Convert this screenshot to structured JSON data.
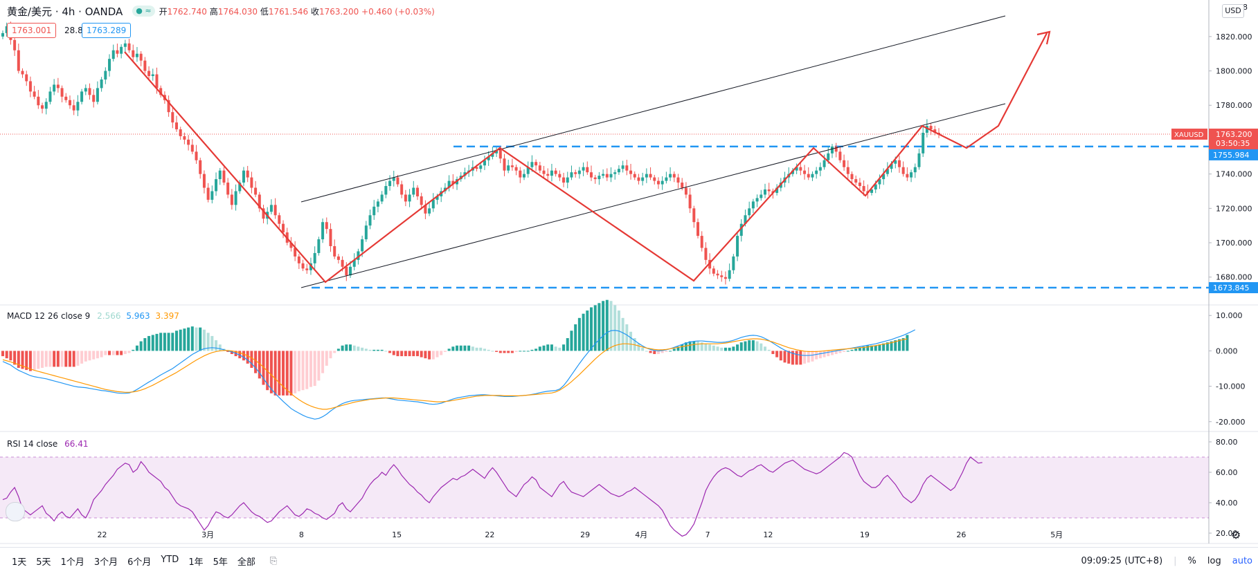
{
  "header": {
    "symbol": "黄金/美元 · 4h · OANDA",
    "status_badge": "● ≈",
    "open_label": "开",
    "open": "1762.740",
    "high_label": "高",
    "high": "1764.030",
    "low_label": "低",
    "low": "1761.546",
    "close_label": "收",
    "close": "1763.200",
    "change": "+0.460 (+0.03%)",
    "bid": "1763.001",
    "spread": "28.8",
    "ask": "1763.289",
    "currency": "USD"
  },
  "price_axis": {
    "ticks": [
      "1820.000",
      "1800.000",
      "1780.000",
      "1760.000",
      "1740.000",
      "1720.000",
      "1700.000",
      "1680.000"
    ],
    "top_partial": "18",
    "symbol_tag": "XAUUSD",
    "last_price": "1763.200",
    "countdown": "03:50:35",
    "level_upper": "1755.984",
    "level_lower": "1673.845"
  },
  "time_axis": {
    "labels": [
      "22",
      "3月",
      "8",
      "15",
      "22",
      "29",
      "4月",
      "7",
      "12",
      "19",
      "26",
      "5月"
    ]
  },
  "macd": {
    "label": "MACD 12 26 close 9",
    "histogram": "2.566",
    "macd": "5.963",
    "signal": "3.397",
    "ticks": [
      "10.000",
      "0.000",
      "-10.000",
      "-20.000"
    ]
  },
  "rsi": {
    "label": "RSI 14 close",
    "value": "66.41",
    "ticks": [
      "80.00",
      "60.00",
      "40.00",
      "20.00"
    ]
  },
  "bottom_bar": {
    "ranges": [
      "1天",
      "5天",
      "1个月",
      "3个月",
      "6个月",
      "YTD",
      "1年",
      "5年",
      "全部"
    ],
    "clock": "09:09:25 (UTC+8)",
    "percent": "%",
    "log": "log",
    "auto": "auto"
  },
  "colors": {
    "up": "#26a69a",
    "down": "#ef5350",
    "drawing": "#e53935",
    "level": "#2196f3",
    "macd_line": "#2196f3",
    "signal_line": "#ff9800",
    "rsi": "#9c27b0"
  },
  "chart_data": [
    {
      "type": "candlestick",
      "timeframe": "4h",
      "ylim": [
        1665,
        1830
      ],
      "closes": [
        1822,
        1826,
        1818,
        1812,
        1800,
        1798,
        1794,
        1788,
        1785,
        1780,
        1778,
        1782,
        1788,
        1792,
        1790,
        1785,
        1783,
        1780,
        1777,
        1782,
        1788,
        1790,
        1786,
        1782,
        1790,
        1795,
        1800,
        1807,
        1812,
        1810,
        1814,
        1816,
        1812,
        1808,
        1810,
        1806,
        1800,
        1797,
        1798,
        1790,
        1786,
        1783,
        1776,
        1770,
        1766,
        1762,
        1760,
        1757,
        1753,
        1748,
        1740,
        1732,
        1725,
        1730,
        1737,
        1742,
        1735,
        1728,
        1722,
        1730,
        1735,
        1742,
        1738,
        1732,
        1728,
        1720,
        1714,
        1718,
        1722,
        1716,
        1711,
        1706,
        1700,
        1697,
        1692,
        1688,
        1685,
        1684,
        1688,
        1694,
        1702,
        1712,
        1708,
        1698,
        1692,
        1690,
        1686,
        1681,
        1686,
        1690,
        1695,
        1702,
        1710,
        1716,
        1721,
        1724,
        1728,
        1733,
        1736,
        1738,
        1734,
        1728,
        1724,
        1728,
        1732,
        1727,
        1722,
        1717,
        1720,
        1725,
        1727,
        1730,
        1732,
        1736,
        1734,
        1737,
        1739,
        1741,
        1742,
        1744,
        1743,
        1745,
        1748,
        1750,
        1752,
        1754,
        1749,
        1742,
        1745,
        1744,
        1742,
        1738,
        1740,
        1744,
        1747,
        1745,
        1742,
        1740,
        1739,
        1742,
        1740,
        1738,
        1735,
        1738,
        1741,
        1740,
        1742,
        1744,
        1741,
        1738,
        1737,
        1739,
        1740,
        1738,
        1740,
        1741,
        1743,
        1745,
        1742,
        1740,
        1738,
        1736,
        1738,
        1740,
        1738,
        1736,
        1734,
        1736,
        1738,
        1740,
        1738,
        1735,
        1732,
        1728,
        1720,
        1712,
        1704,
        1697,
        1690,
        1685,
        1682,
        1681,
        1680,
        1679,
        1684,
        1692,
        1704,
        1711,
        1716,
        1720,
        1724,
        1726,
        1728,
        1731,
        1730,
        1729,
        1732,
        1735,
        1738,
        1740,
        1742,
        1744,
        1742,
        1740,
        1738,
        1740,
        1742,
        1744,
        1748,
        1752,
        1756,
        1753,
        1748,
        1744,
        1740,
        1737,
        1735,
        1733,
        1730,
        1729,
        1731,
        1734,
        1737,
        1740,
        1743,
        1746,
        1748,
        1744,
        1740,
        1738,
        1741,
        1744,
        1752,
        1764,
        1768,
        1766,
        1764,
        1763
      ]
    },
    {
      "type": "line",
      "name": "MACD 12 26 close 9",
      "ylim": [
        -22,
        12
      ],
      "macd_line": [
        -3,
        -3.5,
        -4,
        -4.8,
        -5.5,
        -6,
        -6.5,
        -7,
        -7.3,
        -7.5,
        -7.7,
        -7.9,
        -8.2,
        -8.5,
        -8.8,
        -9.1,
        -9.4,
        -9.7,
        -10,
        -10.2,
        -10.3,
        -10.4,
        -10.6,
        -10.8,
        -11,
        -11.2,
        -11.3,
        -11.5,
        -11.7,
        -11.9,
        -12,
        -12,
        -11.9,
        -11.5,
        -10.9,
        -10.2,
        -9.5,
        -8.8,
        -8.2,
        -7.5,
        -6.8,
        -6.2,
        -5.6,
        -5,
        -4.2,
        -3.4,
        -2.6,
        -1.8,
        -1,
        -0.4,
        0.2,
        0.6,
        0.8,
        0.9,
        0.8,
        0.6,
        0.3,
        0,
        -0.3,
        -0.7,
        -1.2,
        -1.8,
        -2.6,
        -3.6,
        -4.8,
        -6.2,
        -7.8,
        -9.4,
        -10.8,
        -12.1,
        -13.2,
        -14.3,
        -15.3,
        -16.3,
        -17,
        -17.6,
        -18.2,
        -18.7,
        -19,
        -19.3,
        -19.1,
        -18.6,
        -17.9,
        -17,
        -16.2,
        -15.5,
        -14.9,
        -14.5,
        -14.2,
        -14,
        -13.9,
        -13.8,
        -13.7,
        -13.6,
        -13.5,
        -13.4,
        -13.3,
        -13.3,
        -13.5,
        -13.7,
        -13.9,
        -14,
        -14.1,
        -14.2,
        -14.3,
        -14.4,
        -14.6,
        -14.8,
        -15,
        -15.1,
        -15,
        -14.8,
        -14.4,
        -14,
        -13.6,
        -13.3,
        -13.1,
        -12.9,
        -12.7,
        -12.6,
        -12.5,
        -12.4,
        -12.4,
        -12.5,
        -12.6,
        -12.7,
        -12.8,
        -12.9,
        -12.9,
        -12.9,
        -12.8,
        -12.7,
        -12.6,
        -12.5,
        -12.3,
        -12.1,
        -11.8,
        -11.6,
        -11.4,
        -11.3,
        -11.2,
        -10.8,
        -9.8,
        -8.4,
        -6.8,
        -5.2,
        -3.6,
        -2.1,
        -0.7,
        0.7,
        2,
        3.2,
        4.3,
        5.2,
        5.7,
        5.8,
        5.6,
        5.1,
        4.5,
        3.7,
        2.9,
        2.1,
        1.4,
        0.8,
        0.4,
        0.1,
        0,
        0.1,
        0.3,
        0.6,
        1,
        1.4,
        1.8,
        2.2,
        2.5,
        2.7,
        2.8,
        2.8,
        2.7,
        2.6,
        2.5,
        2.4,
        2.4,
        2.5,
        2.7,
        3,
        3.4,
        3.8,
        4.1,
        4.3,
        4.4,
        4.3,
        4,
        3.5,
        2.9,
        2.2,
        1.5,
        0.8,
        0.2,
        -0.3,
        -0.7,
        -1,
        -1.2,
        -1.3,
        -1.3,
        -1.2,
        -1,
        -0.8,
        -0.6,
        -0.4,
        -0.2,
        0,
        0.2,
        0.4,
        0.6,
        0.8,
        1,
        1.2,
        1.4,
        1.6,
        1.8,
        2,
        2.3,
        2.6,
        2.9,
        3.2,
        3.6,
        4,
        4.4,
        4.9,
        5.4,
        5.963
      ],
      "signal_line": [
        -2.5,
        -2.8,
        -3.1,
        -3.5,
        -3.9,
        -4.3,
        -4.7,
        -5.1,
        -5.5,
        -5.8,
        -6.1,
        -6.4,
        -6.7,
        -7,
        -7.3,
        -7.6,
        -7.9,
        -8.2,
        -8.5,
        -8.8,
        -9.1,
        -9.4,
        -9.7,
        -10,
        -10.3,
        -10.6,
        -10.9,
        -11.1,
        -11.3,
        -11.5,
        -11.6,
        -11.7,
        -11.7,
        -11.6,
        -11.4,
        -11.1,
        -10.7,
        -10.2,
        -9.7,
        -9.1,
        -8.5,
        -7.9,
        -7.3,
        -6.7,
        -6.1,
        -5.4,
        -4.7,
        -4,
        -3.3,
        -2.6,
        -2,
        -1.4,
        -0.9,
        -0.5,
        -0.2,
        0,
        0.1,
        0.1,
        0,
        -0.2,
        -0.5,
        -0.9,
        -1.4,
        -2,
        -2.7,
        -3.6,
        -4.6,
        -5.7,
        -6.8,
        -7.9,
        -9,
        -10.1,
        -11.1,
        -12.1,
        -13,
        -13.8,
        -14.5,
        -15.1,
        -15.6,
        -16,
        -16.3,
        -16.5,
        -16.5,
        -16.3,
        -16,
        -15.7,
        -15.4,
        -15.1,
        -14.8,
        -14.5,
        -14.3,
        -14.1,
        -13.9,
        -13.7,
        -13.6,
        -13.5,
        -13.4,
        -13.3,
        -13.3,
        -13.3,
        -13.4,
        -13.5,
        -13.6,
        -13.7,
        -13.8,
        -13.9,
        -14,
        -14.1,
        -14.2,
        -14.3,
        -14.4,
        -14.4,
        -14.3,
        -14.2,
        -14,
        -13.8,
        -13.6,
        -13.4,
        -13.2,
        -13,
        -12.8,
        -12.7,
        -12.6,
        -12.6,
        -12.6,
        -12.6,
        -12.6,
        -12.7,
        -12.7,
        -12.7,
        -12.7,
        -12.7,
        -12.6,
        -12.5,
        -12.4,
        -12.3,
        -12.2,
        -12.1,
        -12,
        -11.9,
        -11.6,
        -11.1,
        -10.4,
        -9.6,
        -8.7,
        -7.7,
        -6.7,
        -5.6,
        -4.5,
        -3.4,
        -2.3,
        -1.3,
        -0.4,
        0.4,
        1,
        1.5,
        1.8,
        2,
        2,
        1.9,
        1.7,
        1.4,
        1.1,
        0.8,
        0.6,
        0.4,
        0.3,
        0.3,
        0.4,
        0.6,
        0.8,
        1,
        1.2,
        1.4,
        1.6,
        1.8,
        1.9,
        2,
        2,
        2,
        2,
        2,
        2.1,
        2.2,
        2.4,
        2.6,
        2.8,
        3,
        3.2,
        3.3,
        3.4,
        3.4,
        3.3,
        3.1,
        2.8,
        2.5,
        2.1,
        1.7,
        1.3,
        0.9,
        0.6,
        0.3,
        0.1,
        -0.1,
        -0.2,
        -0.2,
        -0.2,
        -0.1,
        0,
        0.1,
        0.2,
        0.3,
        0.4,
        0.5,
        0.6,
        0.7,
        0.8,
        0.9,
        1,
        1.1,
        1.3,
        1.5,
        1.7,
        1.9,
        2.1,
        2.3,
        2.6,
        2.9,
        3.2,
        3.397
      ]
    },
    {
      "type": "line",
      "name": "RSI 14 close",
      "ylim": [
        15,
        85
      ],
      "bands": [
        30,
        70
      ],
      "values": [
        42,
        43,
        47,
        50,
        44,
        36,
        34,
        32,
        34,
        36,
        38,
        33,
        31,
        28,
        32,
        34,
        31,
        30,
        33,
        36,
        32,
        30,
        35,
        42,
        45,
        48,
        52,
        55,
        58,
        62,
        64,
        66,
        65,
        60,
        62,
        67,
        64,
        60,
        58,
        56,
        54,
        50,
        48,
        44,
        40,
        38,
        37,
        36,
        34,
        30,
        26,
        22,
        25,
        30,
        34,
        33,
        31,
        30,
        32,
        35,
        38,
        40,
        37,
        34,
        32,
        31,
        29,
        27,
        28,
        31,
        34,
        36,
        38,
        35,
        32,
        31,
        33,
        36,
        35,
        33,
        32,
        30,
        29,
        31,
        33,
        38,
        40,
        36,
        34,
        37,
        40,
        43,
        48,
        52,
        55,
        57,
        60,
        58,
        62,
        65,
        62,
        58,
        55,
        52,
        50,
        47,
        45,
        42,
        40,
        44,
        47,
        50,
        52,
        54,
        56,
        55,
        57,
        58,
        60,
        62,
        60,
        58,
        56,
        60,
        63,
        60,
        56,
        52,
        48,
        46,
        44,
        48,
        52,
        54,
        57,
        55,
        50,
        48,
        46,
        44,
        48,
        52,
        54,
        50,
        47,
        46,
        45,
        44,
        46,
        48,
        50,
        52,
        50,
        48,
        46,
        45,
        44,
        45,
        47,
        48,
        50,
        48,
        46,
        44,
        42,
        40,
        38,
        35,
        30,
        25,
        22,
        20,
        18,
        19,
        22,
        26,
        33,
        40,
        48,
        53,
        57,
        60,
        62,
        63,
        62,
        60,
        58,
        57,
        59,
        61,
        62,
        64,
        65,
        63,
        61,
        60,
        62,
        64,
        66,
        67,
        68,
        66,
        64,
        62,
        61,
        60,
        59,
        60,
        62,
        64,
        66,
        68,
        70,
        73,
        72,
        70,
        64,
        58,
        54,
        52,
        50,
        50,
        52,
        56,
        58,
        55,
        52,
        48,
        44,
        42,
        40,
        42,
        46,
        52,
        56,
        58,
        56,
        54,
        52,
        50,
        48,
        50,
        55,
        60,
        66,
        70,
        68,
        66,
        66.41
      ]
    }
  ]
}
